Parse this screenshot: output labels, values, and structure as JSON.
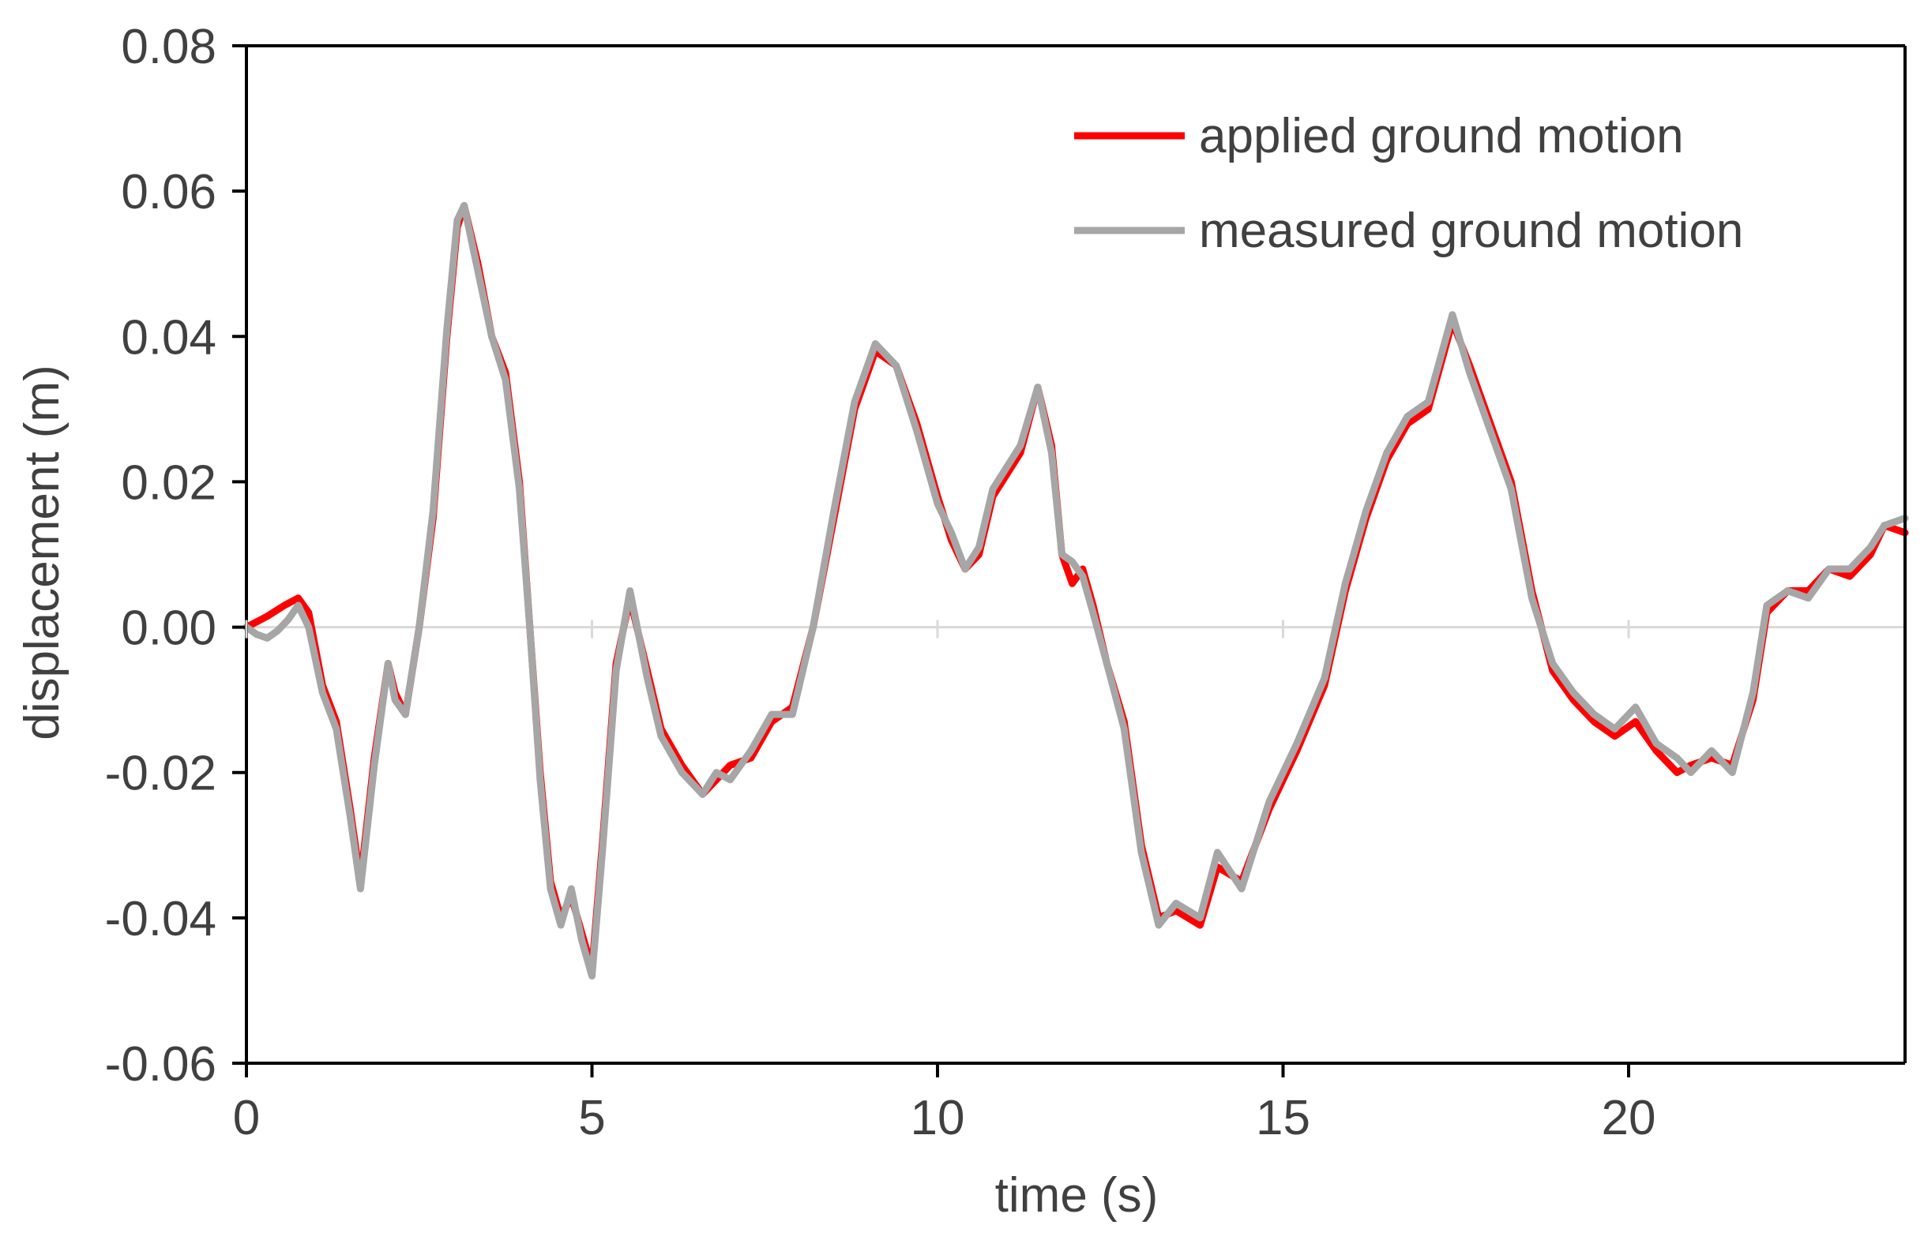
{
  "chart_data": {
    "type": "line",
    "title": "",
    "xlabel": "time (s)",
    "ylabel": "displacement (m)",
    "xlim": [
      0,
      24
    ],
    "ylim": [
      -0.06,
      0.08
    ],
    "xticks": [
      0,
      5,
      10,
      15,
      20
    ],
    "xtick_labels": [
      "0",
      "5",
      "10",
      "15",
      "20"
    ],
    "yticks": [
      -0.06,
      -0.04,
      -0.02,
      0.0,
      0.02,
      0.04,
      0.06,
      0.08
    ],
    "ytick_labels": [
      "-0.06",
      "-0.04",
      "-0.02",
      "0.00",
      "0.02",
      "0.04",
      "0.06",
      "0.08"
    ],
    "grid": false,
    "zero_line": true,
    "legend": "top-right",
    "series": [
      {
        "name": "applied ground motion",
        "color": "#ff0000",
        "x": [
          0,
          0.3,
          0.55,
          0.75,
          0.9,
          1.1,
          1.3,
          1.5,
          1.65,
          1.85,
          2.05,
          2.15,
          2.3,
          2.5,
          2.7,
          2.9,
          3.05,
          3.15,
          3.35,
          3.55,
          3.75,
          3.95,
          4.1,
          4.25,
          4.4,
          4.55,
          4.7,
          4.85,
          5.0,
          5.15,
          5.35,
          5.55,
          5.8,
          6.0,
          6.3,
          6.6,
          6.8,
          7.0,
          7.3,
          7.6,
          7.9,
          8.2,
          8.5,
          8.8,
          9.1,
          9.4,
          9.7,
          10.0,
          10.2,
          10.4,
          10.6,
          10.8,
          11.0,
          11.2,
          11.45,
          11.65,
          11.8,
          11.95,
          12.1,
          12.25,
          12.45,
          12.7,
          12.95,
          13.2,
          13.45,
          13.8,
          14.05,
          14.4,
          14.8,
          15.2,
          15.6,
          15.9,
          16.2,
          16.5,
          16.8,
          17.1,
          17.45,
          17.7,
          18.0,
          18.3,
          18.6,
          18.9,
          19.2,
          19.5,
          19.8,
          20.1,
          20.4,
          20.7,
          20.9,
          21.2,
          21.5,
          21.8,
          22.0,
          22.3,
          22.6,
          22.9,
          23.2,
          23.5,
          23.7,
          24.0
        ],
        "y": [
          0.0,
          0.0015,
          0.003,
          0.004,
          0.002,
          -0.008,
          -0.013,
          -0.025,
          -0.035,
          -0.018,
          -0.005,
          -0.009,
          -0.012,
          0.0,
          0.015,
          0.04,
          0.055,
          0.058,
          0.05,
          0.04,
          0.035,
          0.02,
          0.0,
          -0.02,
          -0.035,
          -0.04,
          -0.037,
          -0.042,
          -0.047,
          -0.03,
          -0.005,
          0.004,
          -0.006,
          -0.014,
          -0.019,
          -0.023,
          -0.021,
          -0.019,
          -0.018,
          -0.013,
          -0.011,
          0.0,
          0.015,
          0.03,
          0.038,
          0.036,
          0.028,
          0.018,
          0.012,
          0.008,
          0.01,
          0.018,
          0.021,
          0.024,
          0.033,
          0.025,
          0.01,
          0.006,
          0.008,
          0.003,
          -0.005,
          -0.013,
          -0.03,
          -0.04,
          -0.039,
          -0.041,
          -0.033,
          -0.035,
          -0.025,
          -0.017,
          -0.008,
          0.005,
          0.015,
          0.023,
          0.028,
          0.03,
          0.042,
          0.036,
          0.028,
          0.02,
          0.005,
          -0.006,
          -0.01,
          -0.013,
          -0.015,
          -0.013,
          -0.017,
          -0.02,
          -0.019,
          -0.018,
          -0.019,
          -0.01,
          0.002,
          0.005,
          0.005,
          0.008,
          0.007,
          0.01,
          0.014,
          0.013
        ]
      },
      {
        "name": "measured ground motion",
        "color": "#a6a6a6",
        "x": [
          0,
          0.15,
          0.3,
          0.45,
          0.6,
          0.75,
          0.9,
          1.1,
          1.3,
          1.5,
          1.65,
          1.85,
          2.05,
          2.15,
          2.3,
          2.5,
          2.7,
          2.9,
          3.05,
          3.15,
          3.35,
          3.55,
          3.75,
          3.95,
          4.1,
          4.25,
          4.4,
          4.55,
          4.7,
          4.85,
          5.0,
          5.15,
          5.35,
          5.55,
          5.8,
          6.0,
          6.3,
          6.6,
          6.8,
          7.0,
          7.3,
          7.6,
          7.9,
          8.2,
          8.5,
          8.8,
          9.1,
          9.4,
          9.7,
          10.0,
          10.2,
          10.4,
          10.6,
          10.8,
          11.0,
          11.2,
          11.45,
          11.65,
          11.8,
          11.95,
          12.1,
          12.25,
          12.45,
          12.7,
          12.95,
          13.2,
          13.45,
          13.8,
          14.05,
          14.4,
          14.8,
          15.2,
          15.6,
          15.9,
          16.2,
          16.5,
          16.8,
          17.1,
          17.45,
          17.7,
          18.0,
          18.3,
          18.6,
          18.9,
          19.2,
          19.5,
          19.8,
          20.1,
          20.4,
          20.7,
          20.9,
          21.2,
          21.5,
          21.8,
          22.0,
          22.3,
          22.6,
          22.9,
          23.2,
          23.5,
          23.7,
          24.0
        ],
        "y": [
          0.0,
          -0.001,
          -0.0015,
          -0.0005,
          0.001,
          0.003,
          0.0,
          -0.009,
          -0.014,
          -0.026,
          -0.036,
          -0.019,
          -0.005,
          -0.01,
          -0.012,
          0.0,
          0.016,
          0.041,
          0.056,
          0.058,
          0.049,
          0.04,
          0.034,
          0.019,
          0.0,
          -0.021,
          -0.036,
          -0.041,
          -0.036,
          -0.043,
          -0.048,
          -0.031,
          -0.006,
          0.005,
          -0.007,
          -0.015,
          -0.02,
          -0.023,
          -0.02,
          -0.021,
          -0.017,
          -0.012,
          -0.012,
          0.0,
          0.016,
          0.031,
          0.039,
          0.036,
          0.027,
          0.017,
          0.013,
          0.008,
          0.011,
          0.019,
          0.022,
          0.025,
          0.033,
          0.024,
          0.01,
          0.009,
          0.007,
          0.002,
          -0.005,
          -0.014,
          -0.031,
          -0.041,
          -0.038,
          -0.04,
          -0.031,
          -0.036,
          -0.024,
          -0.016,
          -0.007,
          0.006,
          0.016,
          0.024,
          0.029,
          0.031,
          0.043,
          0.035,
          0.027,
          0.019,
          0.004,
          -0.005,
          -0.009,
          -0.012,
          -0.014,
          -0.011,
          -0.016,
          -0.018,
          -0.02,
          -0.017,
          -0.02,
          -0.009,
          0.003,
          0.005,
          0.004,
          0.008,
          0.008,
          0.011,
          0.014,
          0.015
        ]
      }
    ]
  }
}
